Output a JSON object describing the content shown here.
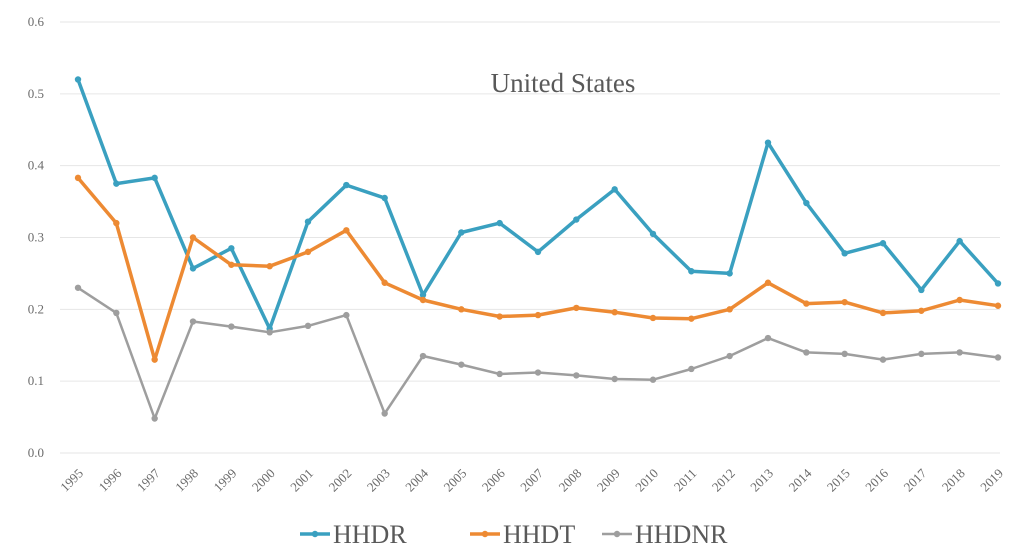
{
  "chart_data": {
    "type": "line",
    "title": "United States",
    "xlabel": "",
    "ylabel": "",
    "x": [
      "1995",
      "1996",
      "1997",
      "1998",
      "1999",
      "2000",
      "2001",
      "2002",
      "2003",
      "2004",
      "2005",
      "2006",
      "2007",
      "2008",
      "2009",
      "2010",
      "2011",
      "2012",
      "2013",
      "2014",
      "2015",
      "2016",
      "2017",
      "2018",
      "2019"
    ],
    "ylim": [
      0,
      0.6
    ],
    "yticks": [
      "0.0",
      "0.1",
      "0.2",
      "0.3",
      "0.4",
      "0.5",
      "0.6"
    ],
    "grid": true,
    "legend_position": "bottom",
    "series": [
      {
        "name": "HHDR",
        "color": "#3aa0c0",
        "values": [
          0.52,
          0.375,
          0.383,
          0.257,
          0.285,
          0.173,
          0.322,
          0.373,
          0.355,
          0.22,
          0.307,
          0.32,
          0.28,
          0.325,
          0.367,
          0.305,
          0.253,
          0.25,
          0.432,
          0.348,
          0.278,
          0.292,
          0.227,
          0.295,
          0.236
        ]
      },
      {
        "name": "HHDT",
        "color": "#ed8a33",
        "values": [
          0.383,
          0.32,
          0.13,
          0.3,
          0.262,
          0.26,
          0.28,
          0.31,
          0.237,
          0.213,
          0.2,
          0.19,
          0.192,
          0.202,
          0.196,
          0.188,
          0.187,
          0.2,
          0.237,
          0.208,
          0.21,
          0.195,
          0.198,
          0.213,
          0.205
        ]
      },
      {
        "name": "HHDNR",
        "color": "#9e9e9e",
        "values": [
          0.23,
          0.195,
          0.048,
          0.183,
          0.176,
          0.168,
          0.177,
          0.192,
          0.055,
          0.135,
          0.123,
          0.11,
          0.112,
          0.108,
          0.103,
          0.102,
          0.117,
          0.135,
          0.16,
          0.14,
          0.138,
          0.13,
          0.138,
          0.14,
          0.133
        ]
      }
    ]
  }
}
